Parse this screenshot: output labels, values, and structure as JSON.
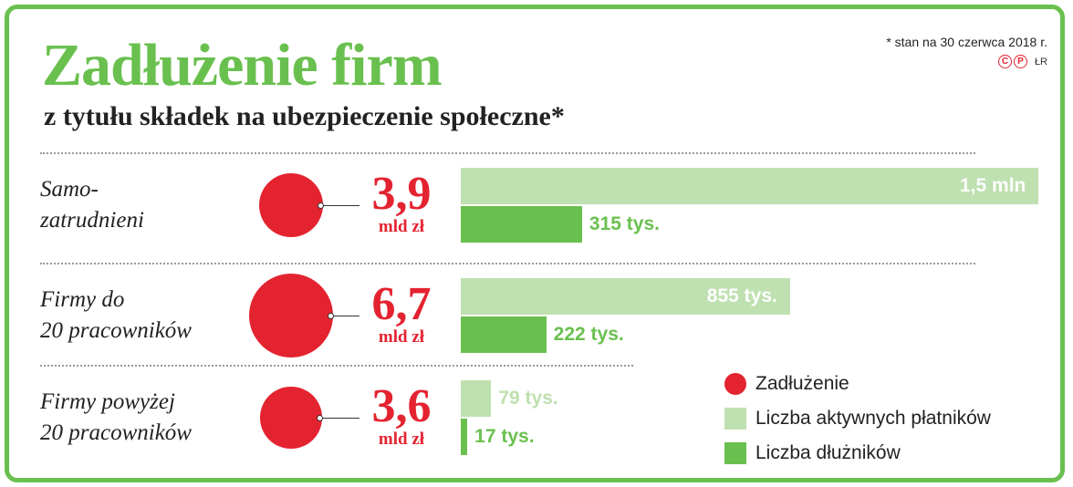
{
  "chart_data": {
    "type": "bar",
    "title": "Zadłużenie firm",
    "subtitle": "z tytułu składek na ubezpieczenie społeczne*",
    "note": "* stan na 30 czerwca 2018 r.",
    "credit": "ŁR",
    "colors": {
      "debt": "#e42330",
      "active": "#bfe0b0",
      "active_text": "#bfe0b0",
      "debtors": "#6ac04f",
      "debtors_text": "#6ac04f",
      "frame": "#6ac04f"
    },
    "categories": [
      {
        "label_lines": [
          "Samo-",
          "zatrudnieni"
        ],
        "debt": 3.9,
        "debt_label": "3,9",
        "debt_unit": "mld zł",
        "active": 1500000,
        "active_label": "1,5 mln",
        "debtors": 315000,
        "debtors_label": "315 tys."
      },
      {
        "label_lines": [
          "Firmy do",
          "20 pracowników"
        ],
        "debt": 6.7,
        "debt_label": "6,7",
        "debt_unit": "mld zł",
        "active": 855000,
        "active_label": "855 tys.",
        "debtors": 222000,
        "debtors_label": "222 tys."
      },
      {
        "label_lines": [
          "Firmy powyżej",
          "20 pracowników"
        ],
        "debt": 3.6,
        "debt_label": "3,6",
        "debt_unit": "mld zł",
        "active": 79000,
        "active_label": "79 tys.",
        "debtors": 17000,
        "debtors_label": "17 tys."
      }
    ],
    "legend": [
      {
        "key": "debt",
        "label": "Zadłużenie"
      },
      {
        "key": "active",
        "label": "Liczba aktywnych płatników"
      },
      {
        "key": "debtors",
        "label": "Liczba dłużników"
      }
    ]
  }
}
